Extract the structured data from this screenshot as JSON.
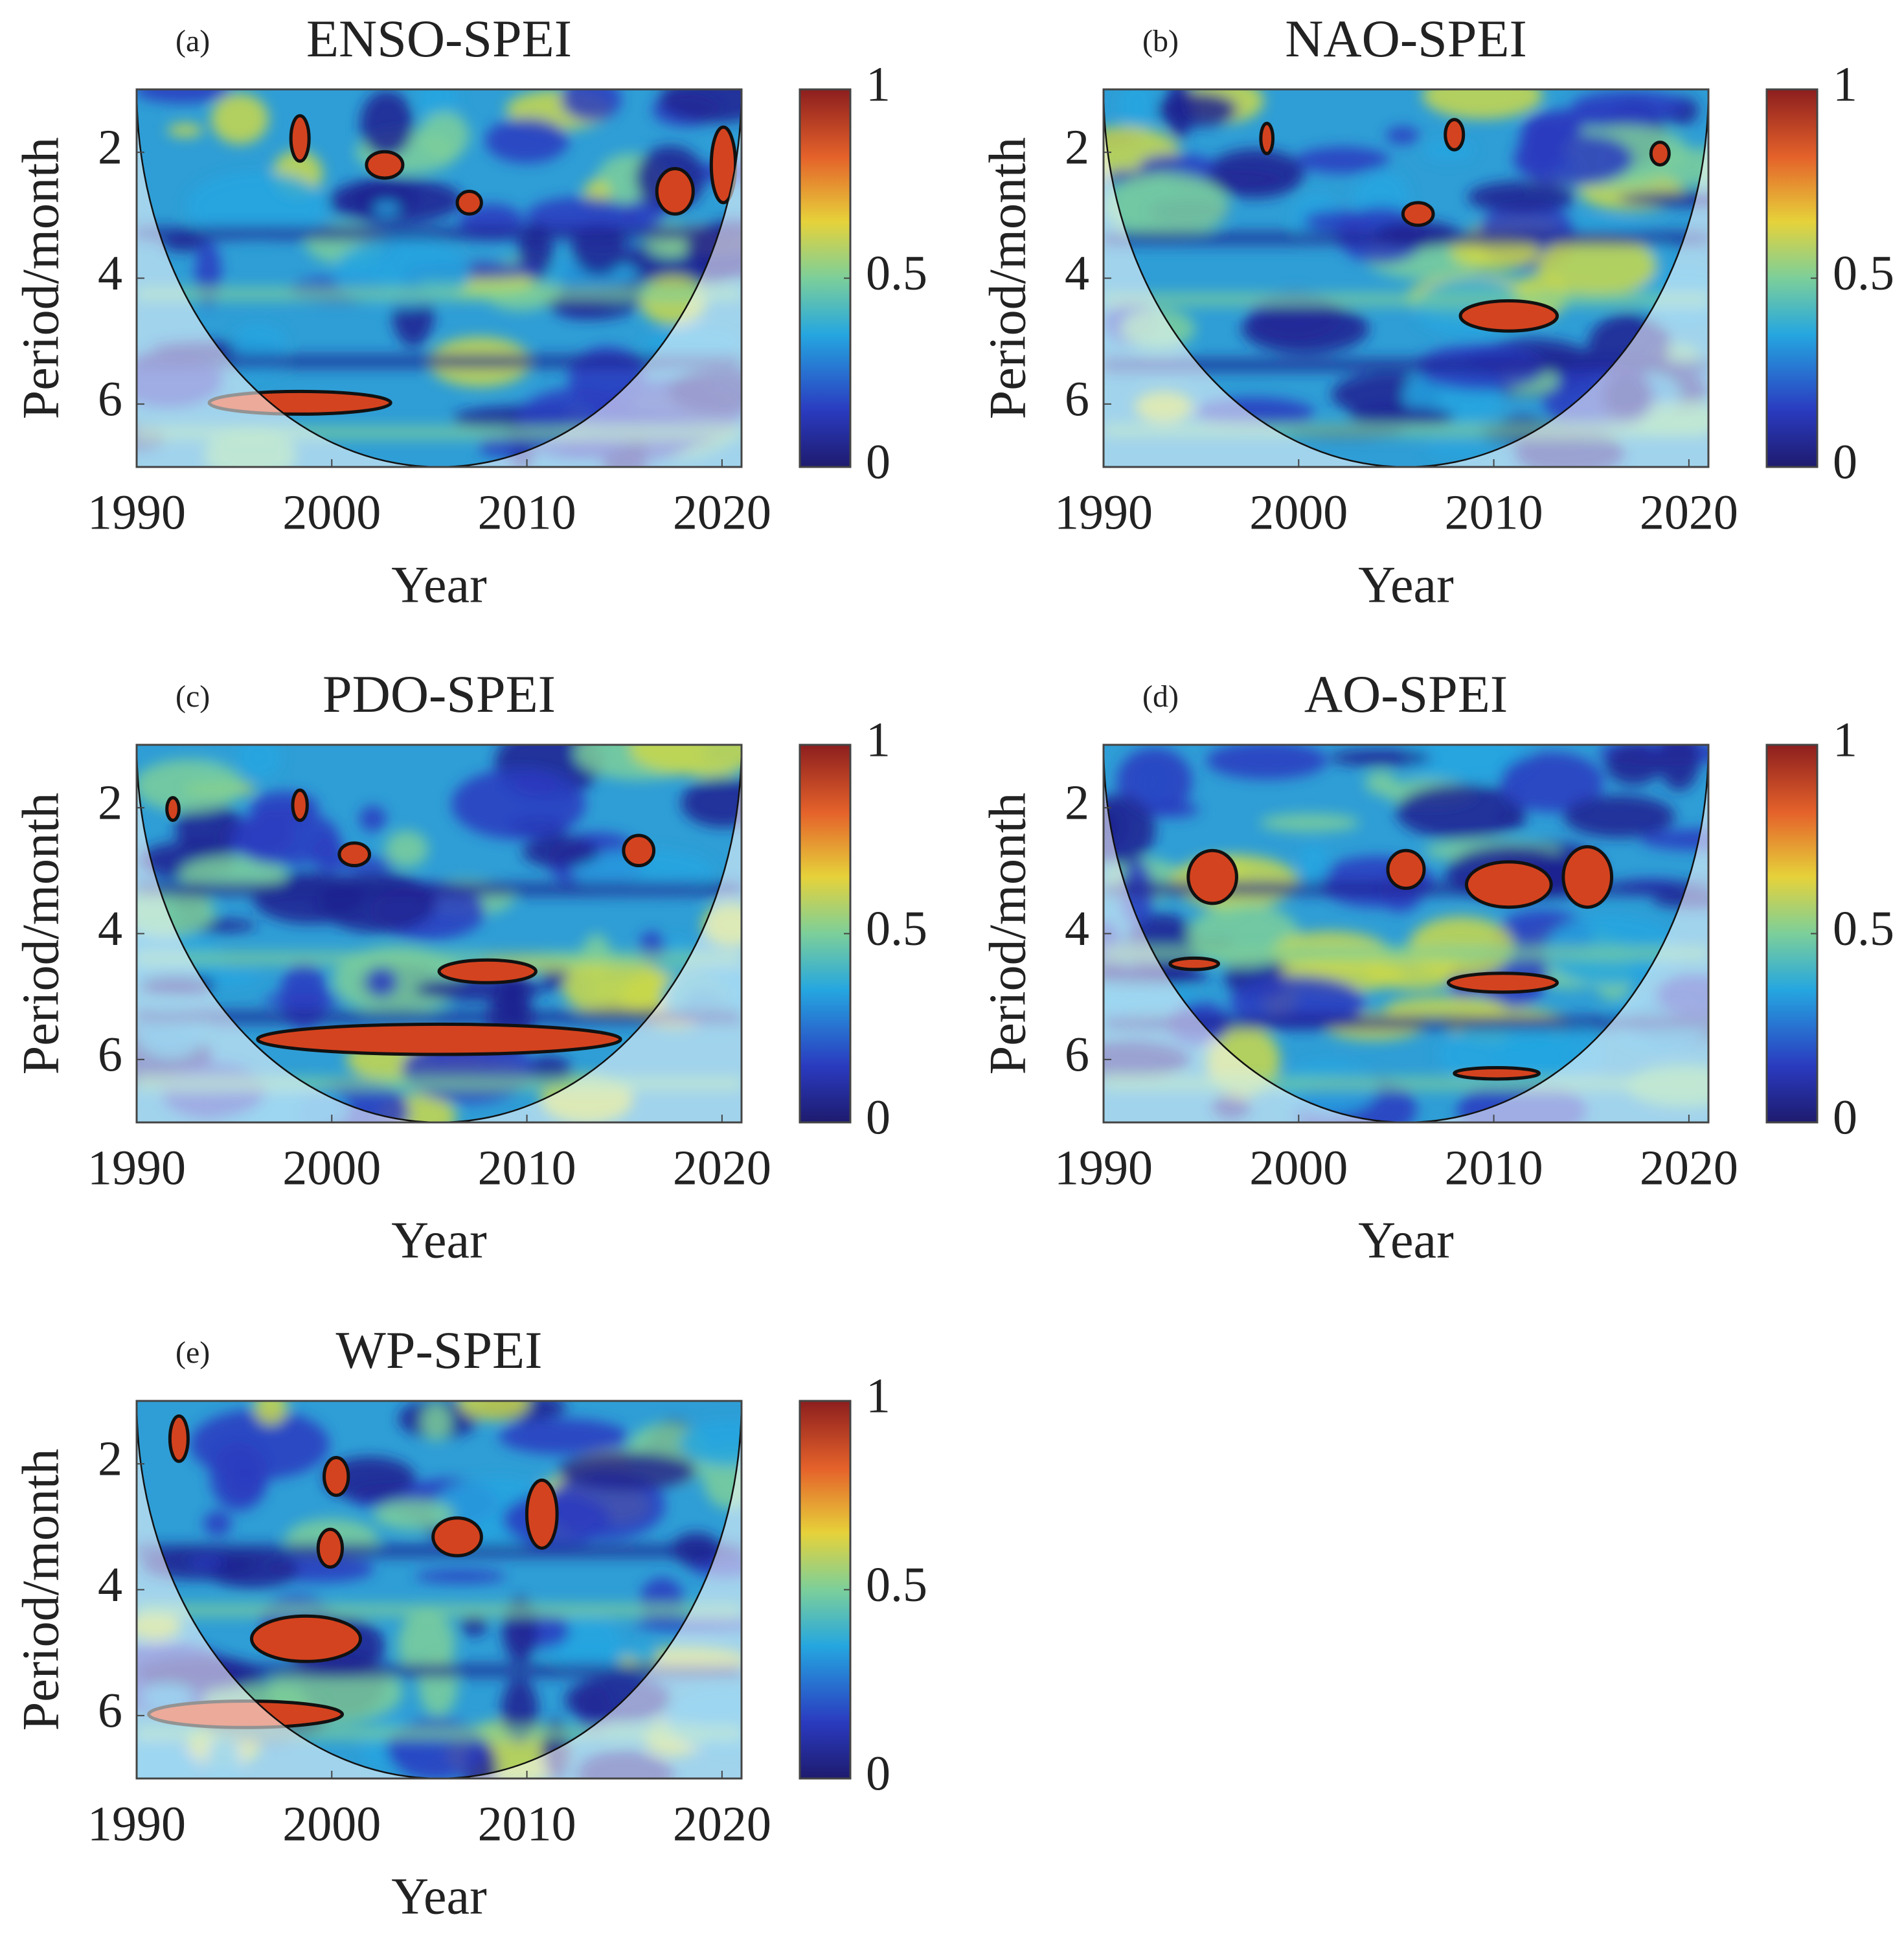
{
  "chart_data": [
    {
      "type": "wavelet-coherence",
      "panel_label": "(a)",
      "title": "ENSO-SPEI",
      "xlabel": "Year",
      "ylabel": "Period/month",
      "xlim": [
        1990,
        2021
      ],
      "xticks": [
        1990,
        2000,
        2010,
        2020
      ],
      "ylim": [
        1,
        7
      ],
      "yticks": [
        2,
        4,
        6
      ],
      "y_inverted": true,
      "colorbar": {
        "lim": [
          0,
          1
        ],
        "ticks": [
          0,
          0.5,
          1
        ]
      }
    },
    {
      "type": "wavelet-coherence",
      "panel_label": "(b)",
      "title": "NAO-SPEI",
      "xlabel": "Year",
      "ylabel": "Period/month",
      "xlim": [
        1990,
        2021
      ],
      "xticks": [
        1990,
        2000,
        2010,
        2020
      ],
      "ylim": [
        1,
        7
      ],
      "yticks": [
        2,
        4,
        6
      ],
      "y_inverted": true,
      "colorbar": {
        "lim": [
          0,
          1
        ],
        "ticks": [
          0,
          0.5,
          1
        ]
      }
    },
    {
      "type": "wavelet-coherence",
      "panel_label": "(c)",
      "title": "PDO-SPEI",
      "xlabel": "Year",
      "ylabel": "Period/month",
      "xlim": [
        1990,
        2021
      ],
      "xticks": [
        1990,
        2000,
        2010,
        2020
      ],
      "ylim": [
        1,
        7
      ],
      "yticks": [
        2,
        4,
        6
      ],
      "y_inverted": true,
      "colorbar": {
        "lim": [
          0,
          1
        ],
        "ticks": [
          0,
          0.5,
          1
        ]
      }
    },
    {
      "type": "wavelet-coherence",
      "panel_label": "(d)",
      "title": "AO-SPEI",
      "xlabel": "Year",
      "ylabel": "Period/month",
      "xlim": [
        1990,
        2021
      ],
      "xticks": [
        1990,
        2000,
        2010,
        2020
      ],
      "ylim": [
        1,
        7
      ],
      "yticks": [
        2,
        4,
        6
      ],
      "y_inverted": true,
      "colorbar": {
        "lim": [
          0,
          1
        ],
        "ticks": [
          0,
          0.5,
          1
        ]
      }
    },
    {
      "type": "wavelet-coherence",
      "panel_label": "(e)",
      "title": "WP-SPEI",
      "xlabel": "Year",
      "ylabel": "Period/month",
      "xlim": [
        1990,
        2021
      ],
      "xticks": [
        1990,
        2000,
        2010,
        2020
      ],
      "ylim": [
        1,
        7
      ],
      "yticks": [
        2,
        4,
        6
      ],
      "y_inverted": true,
      "colorbar": {
        "lim": [
          0,
          1
        ],
        "ticks": [
          0,
          0.5,
          1
        ]
      }
    }
  ]
}
